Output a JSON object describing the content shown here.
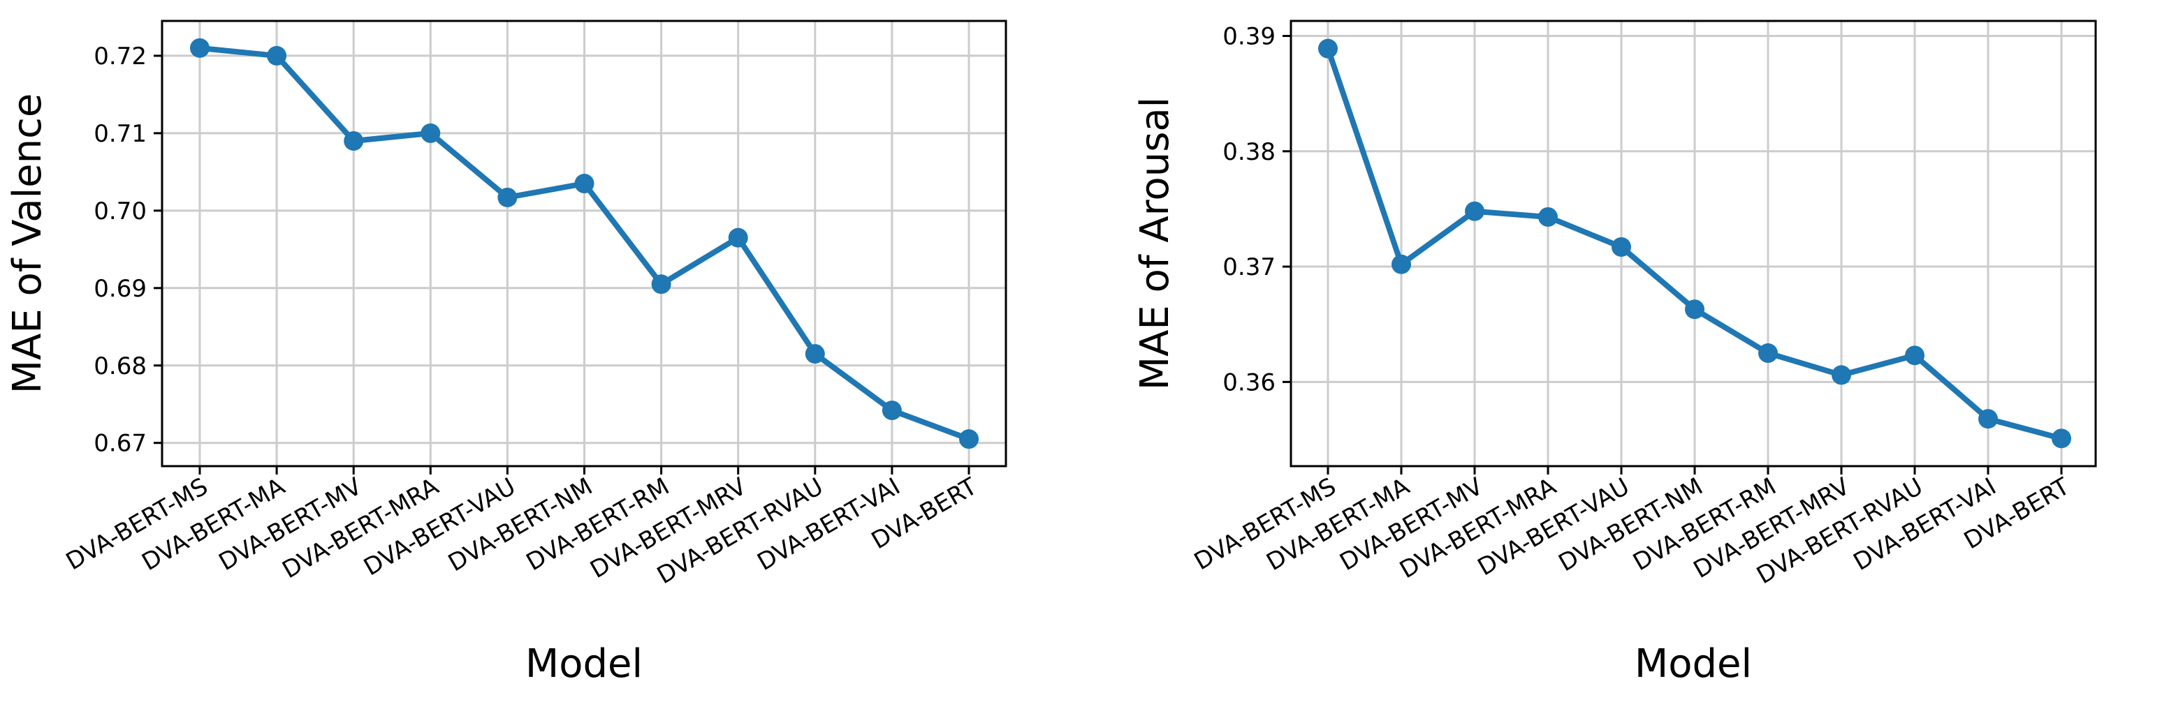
{
  "chart_data": [
    {
      "type": "line",
      "xlabel": "Model",
      "ylabel": "MAE of Valence",
      "categories": [
        "DVA-BERT-MS",
        "DVA-BERT-MA",
        "DVA-BERT-MV",
        "DVA-BERT-MRA",
        "DVA-BERT-VAU",
        "DVA-BERT-NM",
        "DVA-BERT-RM",
        "DVA-BERT-MRV",
        "DVA-BERT-RVAU",
        "DVA-BERT-VAI",
        "DVA-BERT"
      ],
      "values": [
        0.721,
        0.72,
        0.709,
        0.71,
        0.7017,
        0.7035,
        0.6905,
        0.6965,
        0.6815,
        0.6742,
        0.6705
      ],
      "ylim": [
        0.667,
        0.7245
      ],
      "yticks": [
        "0.67",
        "0.68",
        "0.69",
        "0.70",
        "0.71",
        "0.72"
      ],
      "grid": true,
      "color": "#1f77b4"
    },
    {
      "type": "line",
      "xlabel": "Model",
      "ylabel": "MAE of Arousal",
      "categories": [
        "DVA-BERT-MS",
        "DVA-BERT-MA",
        "DVA-BERT-MV",
        "DVA-BERT-MRA",
        "DVA-BERT-VAU",
        "DVA-BERT-NM",
        "DVA-BERT-RM",
        "DVA-BERT-MRV",
        "DVA-BERT-RVAU",
        "DVA-BERT-VAI",
        "DVA-BERT"
      ],
      "values": [
        0.3889,
        0.3702,
        0.3748,
        0.3743,
        0.3717,
        0.3663,
        0.3625,
        0.3606,
        0.3623,
        0.3568,
        0.3551
      ],
      "ylim": [
        0.3527,
        0.3913
      ],
      "yticks": [
        "0.36",
        "0.37",
        "0.38",
        "0.39"
      ],
      "grid": true,
      "color": "#1f77b4"
    }
  ]
}
